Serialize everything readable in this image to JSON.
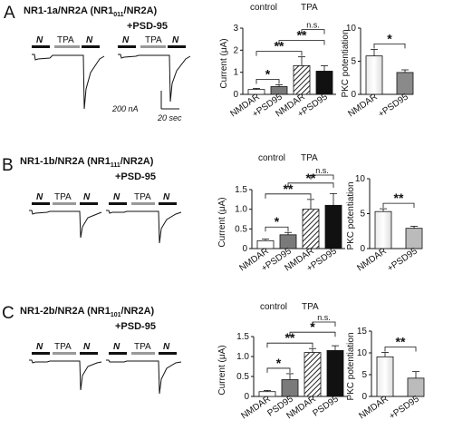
{
  "panels": [
    {
      "letter": "A",
      "title_main": "NR1-1a/NR2A (NR1",
      "title_sub": "011",
      "title_end": "/NR2A)",
      "psd_label": "+PSD-95",
      "trace_labels": {
        "n": "N",
        "tpa": "TPA"
      },
      "scale_labels": {
        "current": "200 nA",
        "time": "20 sec"
      },
      "group_labels": {
        "control": "control",
        "tpa": "TPA"
      },
      "chart_data": {
        "type": "bar",
        "ylabel": "Current (μA)",
        "ylim": [
          0,
          3
        ],
        "yticks": [
          "0",
          "1",
          "2",
          "3"
        ],
        "categories": [
          "NMDAR",
          "+PSD95",
          "NMDAR",
          "+PSD95"
        ],
        "values": [
          0.22,
          0.35,
          1.3,
          1.05
        ],
        "errors": [
          0.05,
          0.08,
          0.4,
          0.25
        ],
        "fills": [
          "#ffffff",
          "#7a7a7a",
          "hatch",
          "#111111"
        ],
        "sig": [
          {
            "label": "*",
            "from": 0,
            "to": 1
          },
          {
            "label": "**",
            "from": 0,
            "to": 2
          },
          {
            "label": "**",
            "from": 1,
            "to": 3
          },
          {
            "label": "n.s.",
            "from": 2,
            "to": 3
          }
        ]
      },
      "pkc_data": {
        "type": "bar",
        "ylabel": "PKC potentiation",
        "ylim": [
          0,
          10
        ],
        "yticks": [
          "0",
          "5",
          "10"
        ],
        "categories": [
          "NMDAR",
          "+PSD95"
        ],
        "values": [
          5.8,
          3.3
        ],
        "errors": [
          1.0,
          0.4
        ],
        "fills": [
          "#ffffff",
          "#8a8a8a"
        ],
        "sig": [
          {
            "label": "*",
            "from": 0,
            "to": 1
          }
        ]
      }
    },
    {
      "letter": "B",
      "title_main": "NR1-1b/NR2A (NR1",
      "title_sub": "111",
      "title_end": "/NR2A)",
      "psd_label": "+PSD-95",
      "trace_labels": {
        "n": "N",
        "tpa": "TPA"
      },
      "group_labels": {
        "control": "control",
        "tpa": "TPA"
      },
      "chart_data": {
        "type": "bar",
        "ylabel": "Current (μA)",
        "ylim": [
          0,
          1.5
        ],
        "yticks": [
          "0",
          "0.5",
          "1.0",
          "1.5"
        ],
        "categories": [
          "NMDAR",
          "+PSD95",
          "NMDAR",
          "+PSD95"
        ],
        "values": [
          0.2,
          0.35,
          1.0,
          1.1
        ],
        "errors": [
          0.04,
          0.06,
          0.25,
          0.3
        ],
        "fills": [
          "#ffffff",
          "#7a7a7a",
          "hatch",
          "#111111"
        ],
        "sig": [
          {
            "label": "*",
            "from": 0,
            "to": 1
          },
          {
            "label": "**",
            "from": 0,
            "to": 2
          },
          {
            "label": "**",
            "from": 1,
            "to": 3
          },
          {
            "label": "n.s.",
            "from": 2,
            "to": 3
          }
        ]
      },
      "pkc_data": {
        "type": "bar",
        "ylabel": "PKC potentiation",
        "ylim": [
          0,
          10
        ],
        "yticks": [
          "0",
          "5",
          "10"
        ],
        "categories": [
          "NMDAR",
          "+PSD95"
        ],
        "values": [
          5.3,
          2.9
        ],
        "errors": [
          0.4,
          0.3
        ],
        "fills": [
          "#ffffff",
          "#bbbbbb"
        ],
        "sig": [
          {
            "label": "**",
            "from": 0,
            "to": 1
          }
        ]
      }
    },
    {
      "letter": "C",
      "title_main": "NR1-2b/NR2A (NR1",
      "title_sub": "101",
      "title_end": "/NR2A)",
      "psd_label": "+PSD-95",
      "trace_labels": {
        "n": "N",
        "tpa": "TPA"
      },
      "group_labels": {
        "control": "control",
        "tpa": "TPA"
      },
      "chart_data": {
        "type": "bar",
        "ylabel": "Current (μA)",
        "ylim": [
          0,
          1.5
        ],
        "yticks": [
          "0",
          "0.5",
          "1.0",
          "1.5"
        ],
        "categories": [
          "NMDAR",
          "PSD95",
          "NMDAR",
          "PSD95"
        ],
        "values": [
          0.12,
          0.42,
          1.1,
          1.15
        ],
        "errors": [
          0.03,
          0.15,
          0.1,
          0.12
        ],
        "fills": [
          "#ffffff",
          "#7a7a7a",
          "hatch",
          "#111111"
        ],
        "sig": [
          {
            "label": "*",
            "from": 0,
            "to": 1
          },
          {
            "label": "**",
            "from": 0,
            "to": 2
          },
          {
            "label": "*",
            "from": 1,
            "to": 3
          },
          {
            "label": "n.s.",
            "from": 2,
            "to": 3
          }
        ]
      },
      "pkc_data": {
        "type": "bar",
        "ylabel": "PKC potentiation",
        "ylim": [
          0,
          15
        ],
        "yticks": [
          "0",
          "5",
          "10",
          "15"
        ],
        "categories": [
          "NMDAR",
          "+PSD95"
        ],
        "values": [
          9.1,
          4.2
        ],
        "errors": [
          1.0,
          1.5
        ],
        "fills": [
          "#ffffff",
          "#bbbbbb"
        ],
        "sig": [
          {
            "label": "**",
            "from": 0,
            "to": 1
          }
        ]
      }
    }
  ]
}
